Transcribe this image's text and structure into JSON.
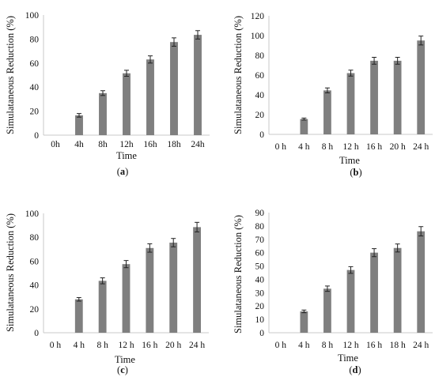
{
  "figure": {
    "panels": [
      "a",
      "b",
      "c",
      "d"
    ]
  },
  "chart_data": [
    {
      "type": "bar",
      "panel_label": "a",
      "categories": [
        "0h",
        "4h",
        "8h",
        "12h",
        "16h",
        "18h",
        "24h"
      ],
      "values": [
        0,
        16.5,
        35,
        51.5,
        63,
        77.5,
        83.5
      ],
      "errors": [
        0,
        1.5,
        2,
        2.5,
        3,
        3.5,
        3.5
      ],
      "xlabel": "Time",
      "ylabel": "Simulataneous  Reduction (%)",
      "ylim": [
        0,
        100
      ],
      "yticks": [
        0,
        20,
        40,
        60,
        80,
        100
      ],
      "bar_color": "#7f7f7f",
      "grid": false
    },
    {
      "type": "bar",
      "panel_label": "b",
      "categories": [
        "0 h",
        "4 h",
        "8 h",
        "12 h",
        "16 h",
        "20 h",
        "24 h"
      ],
      "values": [
        0,
        15.5,
        44.5,
        62,
        74.5,
        74.5,
        95
      ],
      "errors": [
        0,
        1,
        2.5,
        3,
        3.5,
        3.5,
        4.5
      ],
      "xlabel": "Time",
      "ylabel": "Simulataneous Reduction (%)",
      "ylim": [
        0,
        120
      ],
      "yticks": [
        0,
        20,
        40,
        60,
        80,
        100,
        120
      ],
      "bar_color": "#7f7f7f",
      "grid": false
    },
    {
      "type": "bar",
      "panel_label": "c",
      "categories": [
        "0 h",
        "4 h",
        "8 h",
        "12 h",
        "16 h",
        "20 h",
        "24 h"
      ],
      "values": [
        0,
        28,
        43.5,
        57.5,
        71,
        75.5,
        88.5
      ],
      "errors": [
        0,
        1.5,
        2.5,
        3,
        3.5,
        3.5,
        4
      ],
      "xlabel": "Time",
      "ylabel": "Simulataneous Reduction (%)",
      "ylim": [
        0,
        100
      ],
      "yticks": [
        0,
        20,
        40,
        60,
        80,
        100
      ],
      "bar_color": "#7f7f7f",
      "grid": false
    },
    {
      "type": "bar",
      "panel_label": "d",
      "categories": [
        "0 h",
        "4 h",
        "8 h",
        "12 h",
        "16 h",
        "18 h",
        "24 h"
      ],
      "values": [
        0,
        16,
        33,
        47,
        60,
        63.5,
        76
      ],
      "errors": [
        0,
        1,
        2,
        2.5,
        3,
        3,
        3.5
      ],
      "xlabel": "Time",
      "ylabel": "Simulataneous Reduction (%)",
      "ylim": [
        0,
        90
      ],
      "yticks": [
        0,
        10,
        20,
        30,
        40,
        50,
        60,
        70,
        80,
        90
      ],
      "bar_color": "#7f7f7f",
      "grid": false
    }
  ]
}
